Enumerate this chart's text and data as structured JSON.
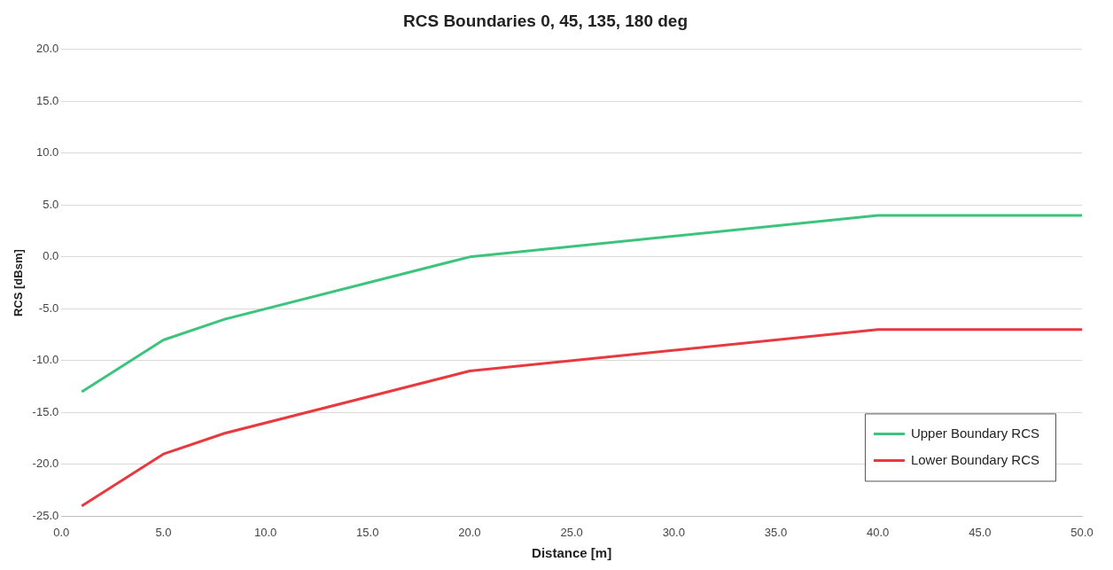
{
  "chart_data": {
    "type": "line",
    "title": "RCS Boundaries 0, 45, 135, 180 deg",
    "xlabel": "Distance [m]",
    "ylabel": "RCS [dBsm]",
    "series": [
      {
        "name": "Upper Boundary RCS",
        "color": "#3cc47c",
        "x": [
          1,
          5,
          8,
          20,
          40,
          50
        ],
        "values": [
          -13,
          -8,
          -6,
          0,
          4,
          4
        ]
      },
      {
        "name": "Lower Boundary RCS",
        "color": "#e8393f",
        "x": [
          1,
          5,
          8,
          20,
          40,
          50
        ],
        "values": [
          -24,
          -19,
          -17,
          -11,
          -7,
          -7
        ]
      }
    ],
    "xlim": [
      0,
      50
    ],
    "xticks": [
      {
        "value": 0,
        "label": "0.0"
      },
      {
        "value": 5,
        "label": "5.0"
      },
      {
        "value": 10,
        "label": "10.0"
      },
      {
        "value": 15,
        "label": "15.0"
      },
      {
        "value": 20,
        "label": "20.0"
      },
      {
        "value": 25,
        "label": "25.0"
      },
      {
        "value": 30,
        "label": "30.0"
      },
      {
        "value": 35,
        "label": "35.0"
      },
      {
        "value": 40,
        "label": "40.0"
      },
      {
        "value": 45,
        "label": "45.0"
      },
      {
        "value": 50,
        "label": "50.0"
      }
    ],
    "ylim": [
      -25,
      20
    ],
    "yticks": [
      {
        "value": -25,
        "label": "-25.0"
      },
      {
        "value": -20,
        "label": "-20.0"
      },
      {
        "value": -15,
        "label": "-15.0"
      },
      {
        "value": -10,
        "label": "-10.0"
      },
      {
        "value": -5,
        "label": "-5.0"
      },
      {
        "value": 0,
        "label": "0.0"
      },
      {
        "value": 5,
        "label": "5.0"
      },
      {
        "value": 10,
        "label": "10.0"
      },
      {
        "value": 15,
        "label": "15.0"
      },
      {
        "value": 20,
        "label": "20.0"
      }
    ],
    "grid": "y",
    "legend": "bottom right",
    "marker": "none",
    "line_style": "solid"
  }
}
